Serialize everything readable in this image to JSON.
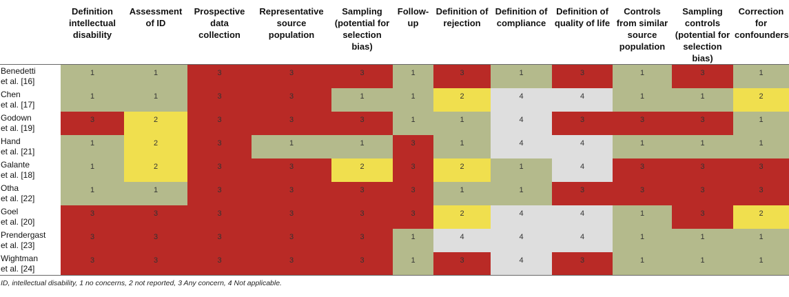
{
  "columns": [
    "",
    "Definition intellectual disability",
    "Assessment of ID",
    "Prospective data collection",
    "Representative source population",
    "Sampling (potential for selection bias)",
    "Follow-up",
    "Definition of rejection",
    "Definition of compliance",
    "Definition of quality of life",
    "Controls from similar source population",
    "Sampling controls (potential for selection bias)",
    "Correction for confounders"
  ],
  "rows": [
    {
      "study": [
        "Benedetti",
        "et al. [16]"
      ],
      "scores": [
        "1",
        "1",
        "3",
        "3",
        "3",
        "1",
        "3",
        "1",
        "3",
        "1",
        "3",
        "1"
      ]
    },
    {
      "study": [
        "Chen",
        "et al. [17]"
      ],
      "scores": [
        "1",
        "1",
        "3",
        "3",
        "1",
        "1",
        "2",
        "4",
        "4",
        "1",
        "1",
        "2"
      ]
    },
    {
      "study": [
        "Godown",
        "et al. [19]"
      ],
      "scores": [
        "3",
        "2",
        "3",
        "3",
        "3",
        "1",
        "1",
        "4",
        "3",
        "3",
        "3",
        "1"
      ]
    },
    {
      "study": [
        "Hand",
        "et al. [21]"
      ],
      "scores": [
        "1",
        "2",
        "3",
        "1",
        "1",
        "3",
        "1",
        "4",
        "4",
        "1",
        "1",
        "1"
      ]
    },
    {
      "study": [
        "Galante",
        "et al. [18]"
      ],
      "scores": [
        "1",
        "2",
        "3",
        "3",
        "2",
        "3",
        "2",
        "1",
        "4",
        "3",
        "3",
        "3"
      ]
    },
    {
      "study": [
        "Otha",
        "et al. [22]"
      ],
      "scores": [
        "1",
        "1",
        "3",
        "3",
        "3",
        "3",
        "1",
        "1",
        "3",
        "3",
        "3",
        "3"
      ]
    },
    {
      "study": [
        "Goel",
        "et al. [20]"
      ],
      "scores": [
        "3",
        "3",
        "3",
        "3",
        "3",
        "3",
        "2",
        "4",
        "4",
        "1",
        "3",
        "2"
      ]
    },
    {
      "study": [
        "Prendergast",
        "et al. [23]"
      ],
      "scores": [
        "3",
        "3",
        "3",
        "3",
        "3",
        "1",
        "4",
        "4",
        "4",
        "1",
        "1",
        "1"
      ]
    },
    {
      "study": [
        "Wightman",
        "et al. [24]"
      ],
      "scores": [
        "3",
        "3",
        "3",
        "3",
        "3",
        "1",
        "3",
        "4",
        "3",
        "1",
        "1",
        "1"
      ]
    }
  ],
  "colors": {
    "1": "#b4ba8c",
    "2": "#f0df4e",
    "3": "#b92a26",
    "4": "#dedede"
  },
  "footnote": "ID, intellectual disability, 1 no concerns, 2 not reported, 3 Any concern, 4 Not applicable."
}
